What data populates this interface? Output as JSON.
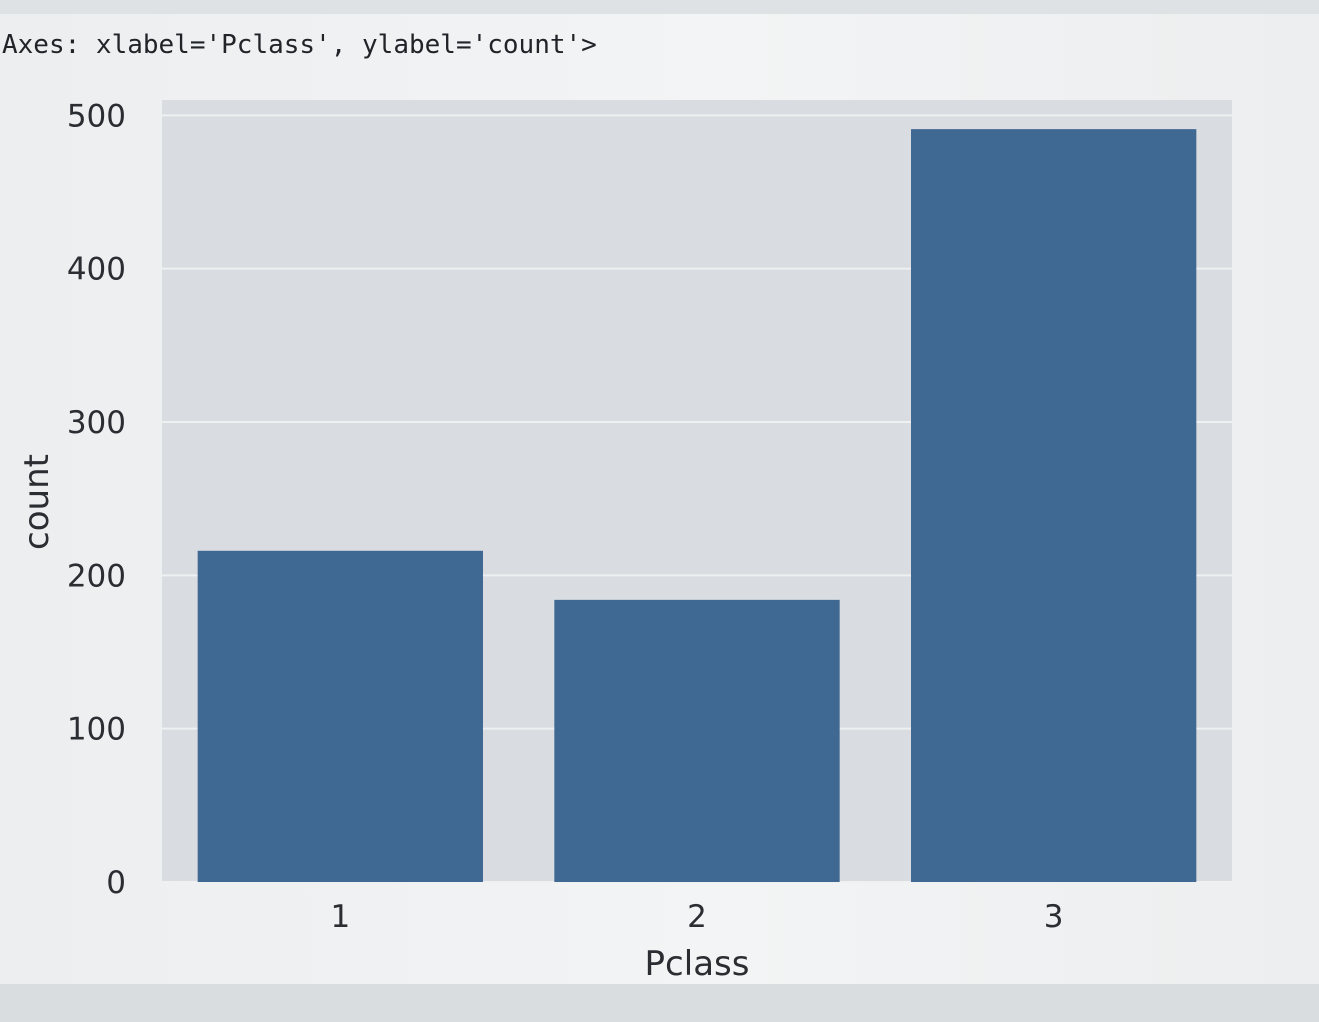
{
  "output": {
    "repr_text": "Axes: xlabel='Pclass', ylabel='count'>"
  },
  "chart_data": {
    "type": "bar",
    "categories": [
      "1",
      "2",
      "3"
    ],
    "values": [
      216,
      184,
      491
    ],
    "xlabel": "Pclass",
    "ylabel": "count",
    "ylim": [
      0,
      510
    ],
    "yticks": [
      0,
      100,
      200,
      300,
      400,
      500
    ],
    "grid": true,
    "bar_color": "#3f6893",
    "background_color": "#d9dce0",
    "gridline_color": "#eef0f2"
  }
}
